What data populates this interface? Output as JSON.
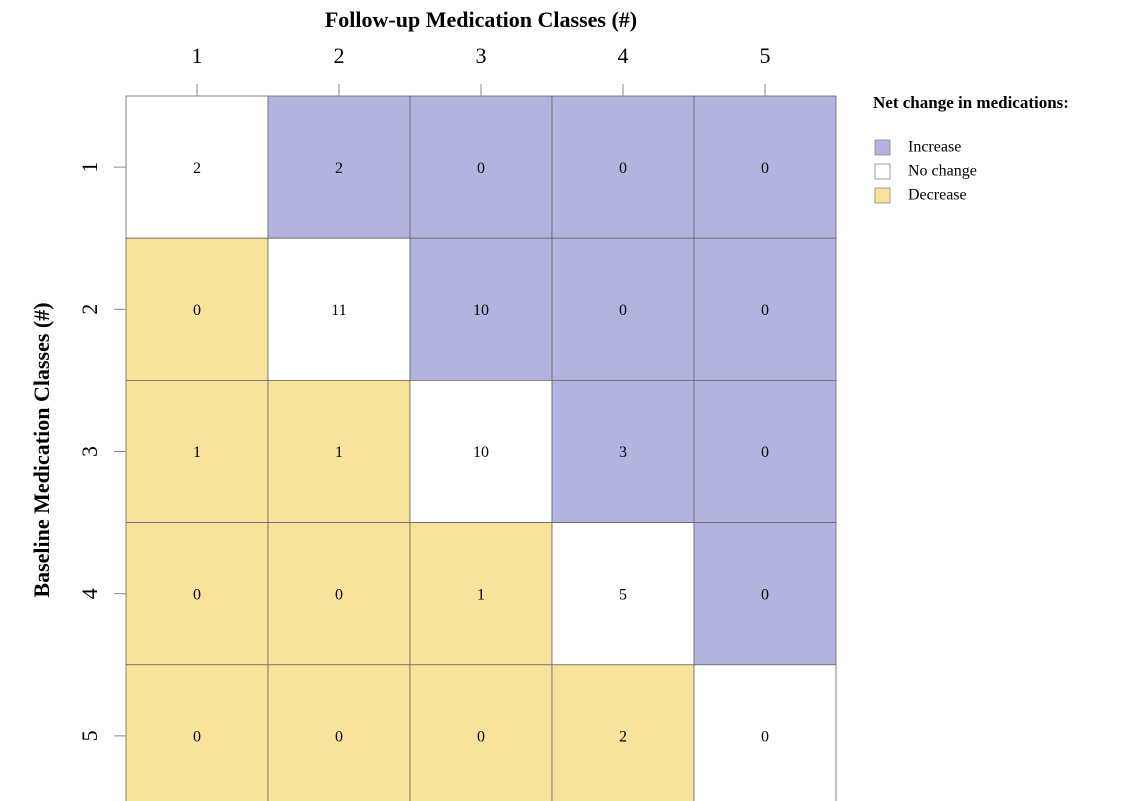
{
  "chart_data": {
    "type": "heatmap",
    "x_label": "Follow-up Medication Classes (#)",
    "y_label": "Baseline Medication Classes (#)",
    "x_categories": [
      1,
      2,
      3,
      4,
      5
    ],
    "y_categories": [
      1,
      2,
      3,
      4,
      5
    ],
    "values": [
      [
        2,
        2,
        0,
        0,
        0
      ],
      [
        0,
        11,
        10,
        0,
        0
      ],
      [
        1,
        1,
        10,
        3,
        0
      ],
      [
        0,
        0,
        1,
        5,
        0
      ],
      [
        0,
        0,
        0,
        2,
        0
      ]
    ],
    "legend_title": "Net change in medications:",
    "series": [
      {
        "name": "Increase",
        "color": "#b3b3e0"
      },
      {
        "name": "No change",
        "color": "#ffffff"
      },
      {
        "name": "Decrease",
        "color": "#f8e39c"
      }
    ]
  }
}
